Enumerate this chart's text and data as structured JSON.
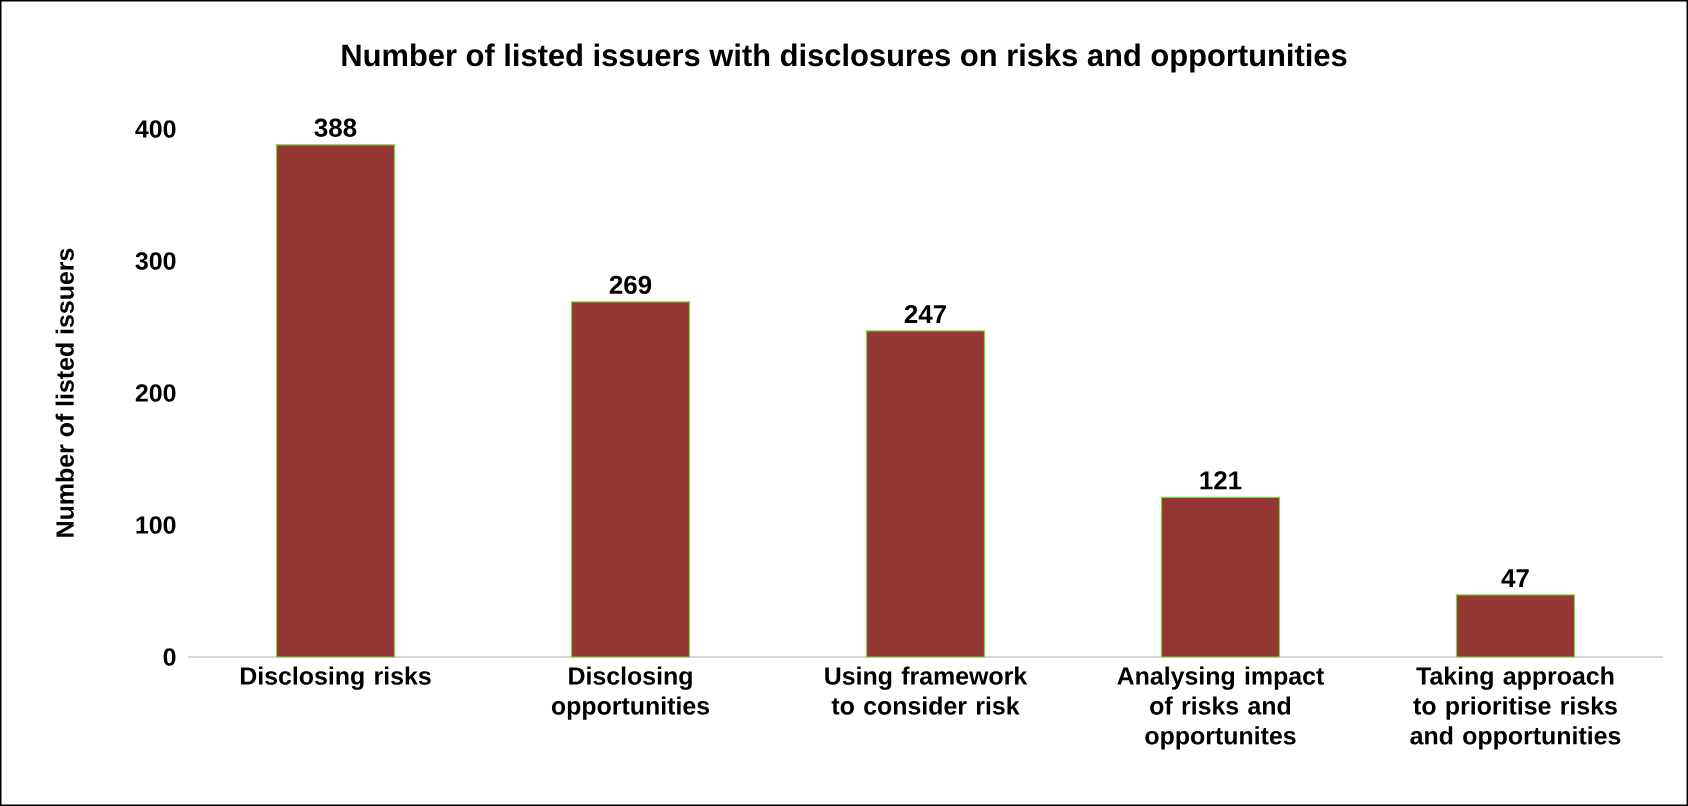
{
  "chart_data": {
    "type": "bar",
    "title": "Number of listed issuers with disclosures on risks and opportunities",
    "ylabel": "Number of listed issuers",
    "categories": [
      "Disclosing risks",
      "Disclosing opportunities",
      "Using framework to consider risk",
      "Analysing impact of risks and opportunites",
      "Taking approach to prioritise risks and opportunities"
    ],
    "values": [
      388,
      269,
      247,
      121,
      47
    ],
    "color": "#943634",
    "ylim": [
      0,
      400
    ],
    "yticks": [
      0,
      100,
      200,
      300,
      400
    ],
    "data_labels": true
  }
}
